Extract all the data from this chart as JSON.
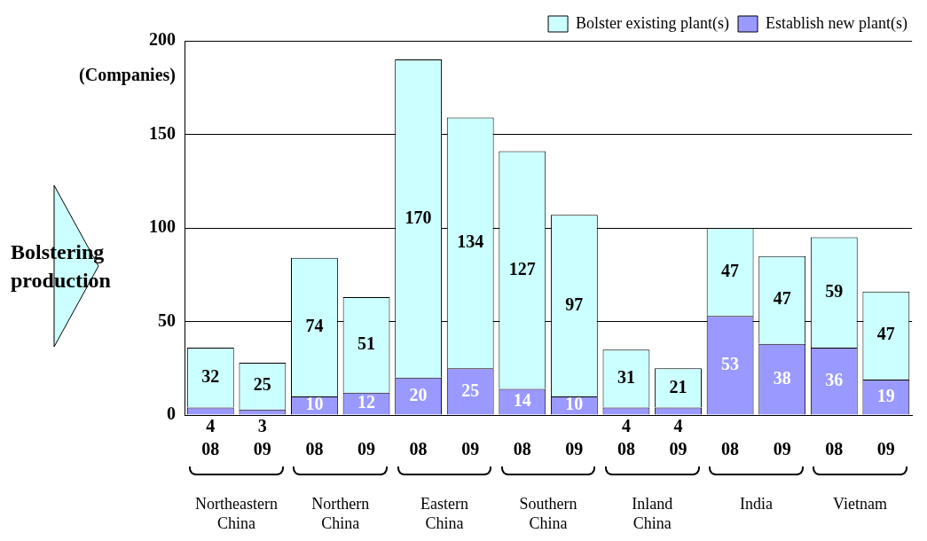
{
  "chart_data": {
    "type": "bar",
    "stacked": true,
    "ylabel": "(Companies)",
    "categories": [
      "08",
      "09",
      "08",
      "09",
      "08",
      "09",
      "08",
      "09",
      "08",
      "09",
      "08",
      "09",
      "08",
      "09"
    ],
    "series": [
      {
        "name": "Establish new plant(s)",
        "color": "#9999ff",
        "values": [
          4,
          3,
          10,
          12,
          20,
          25,
          14,
          10,
          4,
          4,
          53,
          38,
          36,
          19
        ]
      },
      {
        "name": "Bolster existing plant(s)",
        "color": "#ccffff",
        "values": [
          32,
          25,
          74,
          51,
          170,
          134,
          127,
          97,
          31,
          21,
          47,
          47,
          59,
          47
        ]
      }
    ],
    "ylim": [
      0,
      200
    ],
    "yticks": [
      0,
      50,
      100,
      150,
      200
    ],
    "grid": "y",
    "legend": "top right",
    "data_labels": true,
    "annotations": [
      "Northeastern China",
      "Northern China",
      "Eastern China",
      "Southern China",
      "Inland China",
      "India",
      "Vietnam",
      "Bolstering production"
    ]
  }
}
